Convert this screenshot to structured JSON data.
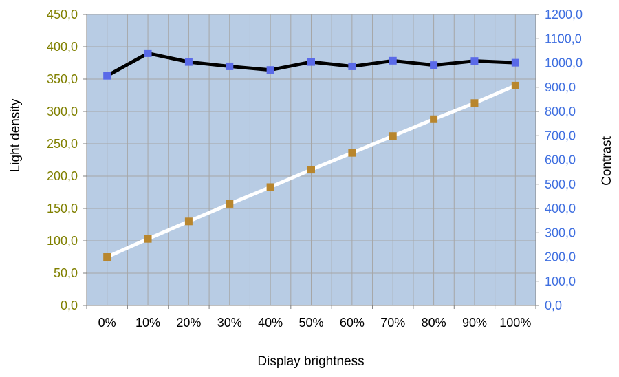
{
  "chart_data": {
    "type": "line",
    "xlabel": "Display brightness",
    "ylabel_left": "Light density",
    "ylabel_right": "Contrast",
    "categories": [
      "0%",
      "10%",
      "20%",
      "30%",
      "40%",
      "50%",
      "60%",
      "70%",
      "80%",
      "90%",
      "100%"
    ],
    "y_left": {
      "range": [
        0,
        450
      ],
      "ticks": [
        "0,0",
        "50,0",
        "100,0",
        "150,0",
        "200,0",
        "250,0",
        "300,0",
        "350,0",
        "400,0",
        "450,0"
      ]
    },
    "y_right": {
      "range": [
        0,
        1200
      ],
      "ticks": [
        "0,0",
        "100,0",
        "200,0",
        "300,0",
        "400,0",
        "500,0",
        "600,0",
        "700,0",
        "800,0",
        "900,0",
        "1000,0",
        "1100,0",
        "1200,0"
      ]
    },
    "grid": true,
    "series": [
      {
        "axis": "left",
        "line_color": "#ffffff",
        "marker_color": "#b8862d",
        "values": [
          75,
          103,
          130,
          157,
          183,
          210,
          236,
          262,
          288,
          313,
          340
        ]
      },
      {
        "axis": "right",
        "line_color": "#000000",
        "marker_color": "#5a6ae8",
        "values": [
          947,
          1040,
          1004,
          986,
          971,
          1004,
          986,
          1009,
          991,
          1008,
          1001
        ]
      }
    ],
    "colors": {
      "plot_background": "#b8cce4",
      "gridline": "#a6a6a6",
      "left_tick_color": "#808000",
      "right_tick_color": "#3f6fe0"
    }
  }
}
